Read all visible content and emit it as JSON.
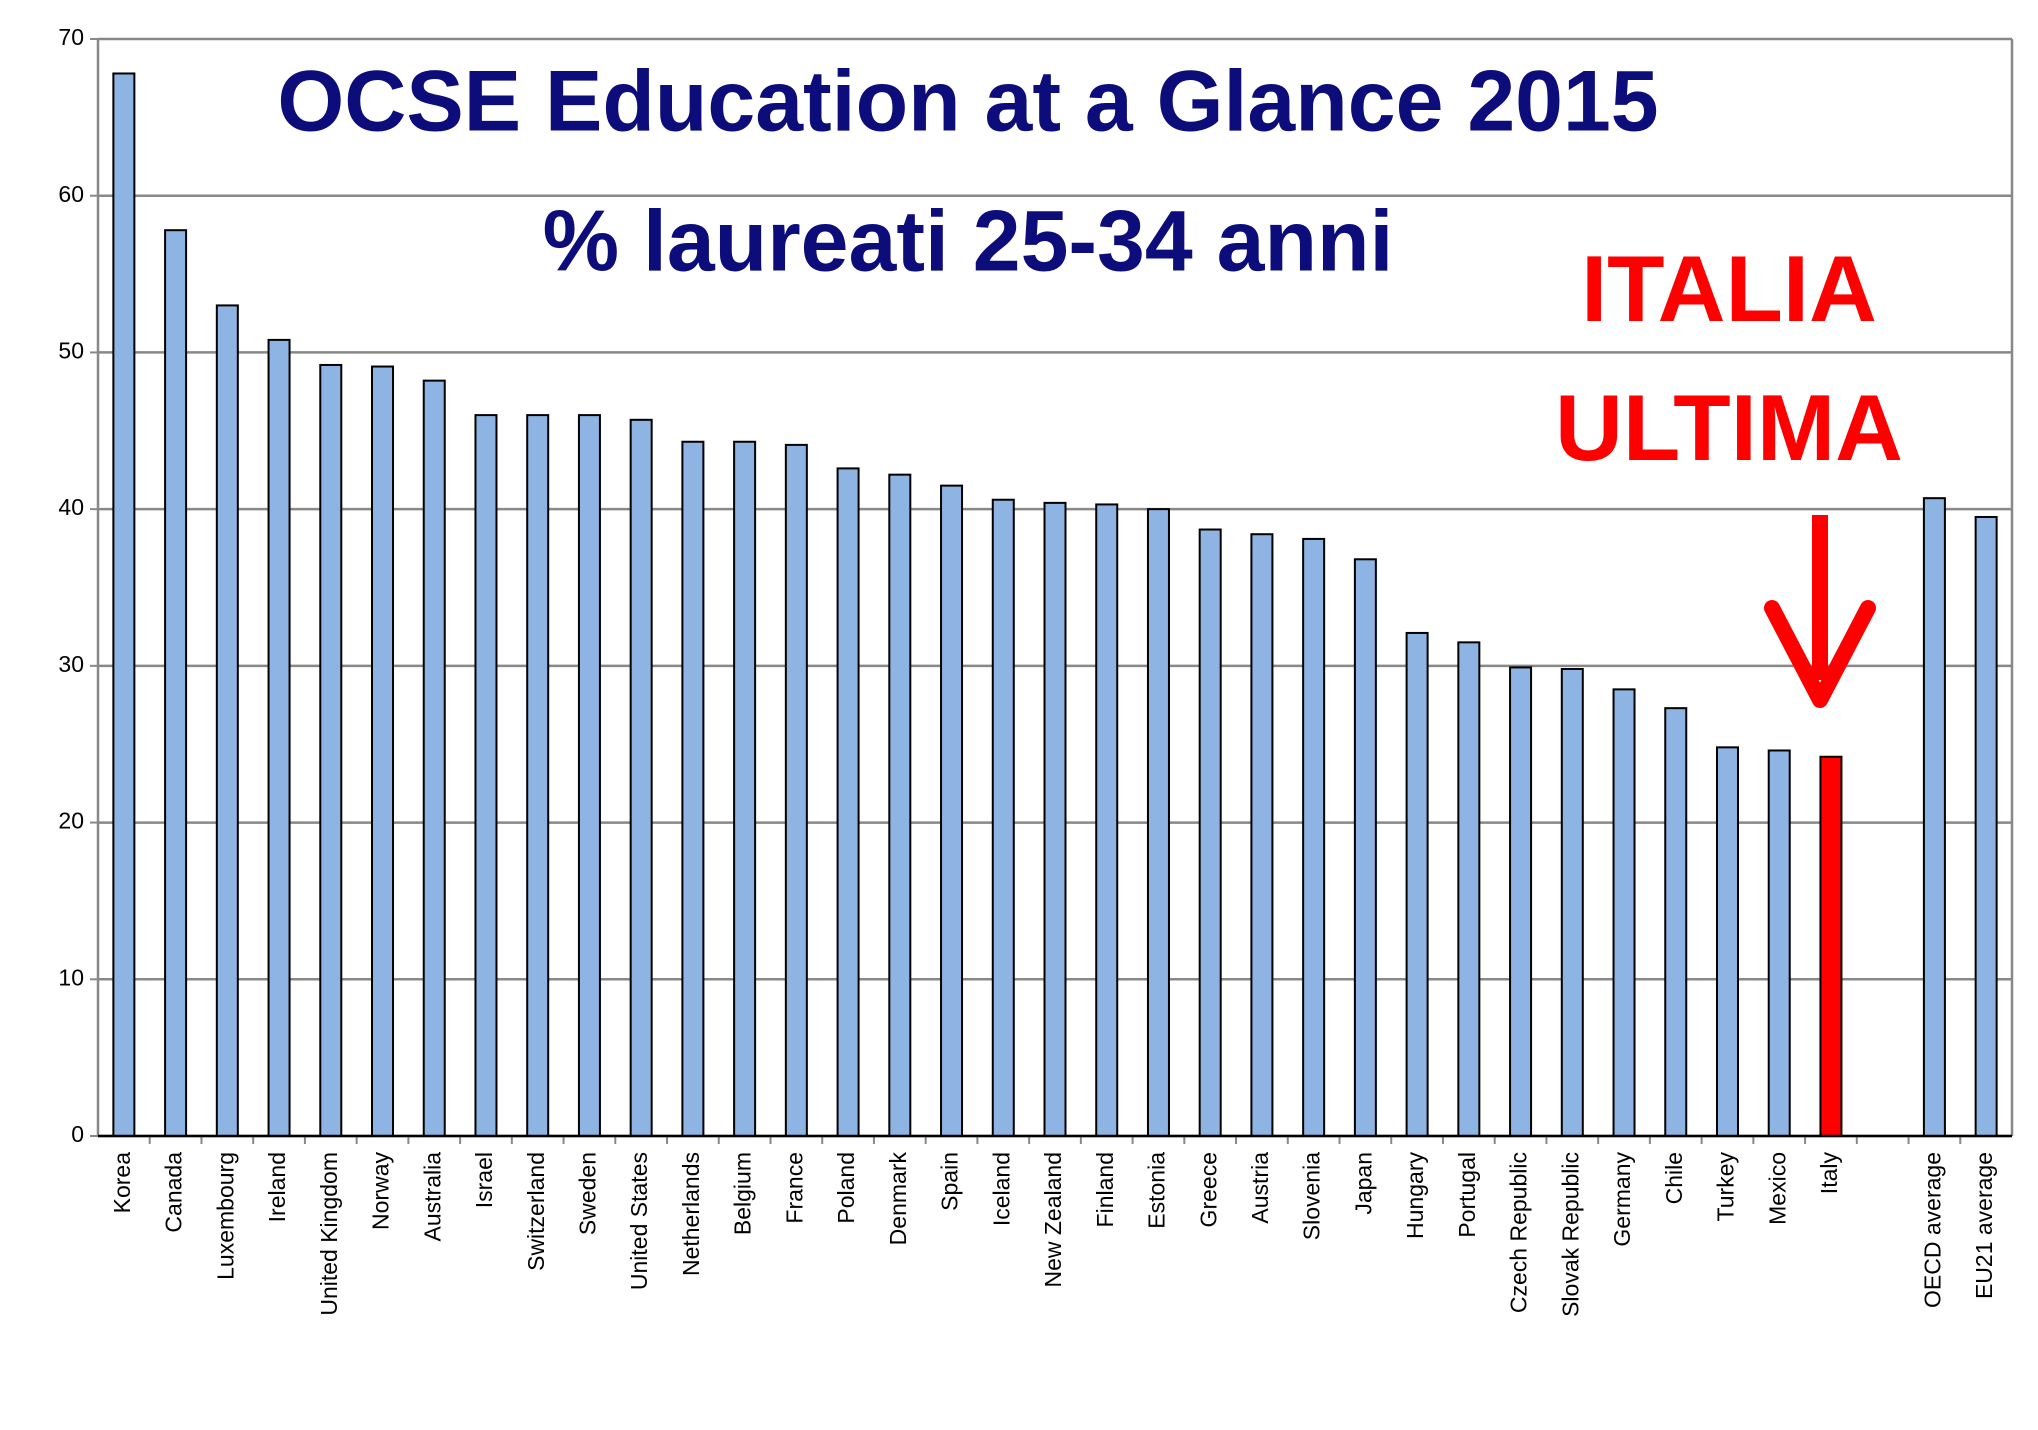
{
  "chart_data": {
    "type": "bar",
    "title": "OCSE Education at a Glance 2015",
    "subtitle": "% laureati 25-34 anni",
    "annotations": [
      "ITALIA",
      "ULTIMA"
    ],
    "categories": [
      "Korea",
      "Canada",
      "Luxembourg",
      "Ireland",
      "United Kingdom",
      "Norway",
      "Australia",
      "Israel",
      "Switzerland",
      "Sweden",
      "United States",
      "Netherlands",
      "Belgium",
      "France",
      "Poland",
      "Denmark",
      "Spain",
      "Iceland",
      "New Zealand",
      "Finland",
      "Estonia",
      "Greece",
      "Austria",
      "Slovenia",
      "Japan",
      "Hungary",
      "Portugal",
      "Czech Republic",
      "Slovak Republic",
      "Germany",
      "Chile",
      "Turkey",
      "Mexico",
      "Italy",
      null,
      "OECD average",
      "EU21 average"
    ],
    "values": [
      67.8,
      57.8,
      53.0,
      50.8,
      49.2,
      49.1,
      48.2,
      46.0,
      46.0,
      46.0,
      45.7,
      44.3,
      44.3,
      44.1,
      42.6,
      42.2,
      41.5,
      40.6,
      40.4,
      40.3,
      40.0,
      38.7,
      38.4,
      38.1,
      36.8,
      32.1,
      31.5,
      29.9,
      29.8,
      28.5,
      27.3,
      24.8,
      24.6,
      24.2,
      null,
      40.7,
      39.5
    ],
    "colors": [
      "#8eb4e3",
      "#8eb4e3",
      "#8eb4e3",
      "#8eb4e3",
      "#8eb4e3",
      "#8eb4e3",
      "#8eb4e3",
      "#8eb4e3",
      "#8eb4e3",
      "#8eb4e3",
      "#8eb4e3",
      "#8eb4e3",
      "#8eb4e3",
      "#8eb4e3",
      "#8eb4e3",
      "#8eb4e3",
      "#8eb4e3",
      "#8eb4e3",
      "#8eb4e3",
      "#8eb4e3",
      "#8eb4e3",
      "#8eb4e3",
      "#8eb4e3",
      "#8eb4e3",
      "#8eb4e3",
      "#8eb4e3",
      "#8eb4e3",
      "#8eb4e3",
      "#8eb4e3",
      "#8eb4e3",
      "#8eb4e3",
      "#8eb4e3",
      "#8eb4e3",
      "#ff0000",
      null,
      "#8eb4e3",
      "#8eb4e3"
    ],
    "ylim": [
      0,
      70
    ],
    "yticks": [
      0,
      10,
      20,
      30,
      40,
      50,
      60,
      70
    ],
    "grid": true
  }
}
